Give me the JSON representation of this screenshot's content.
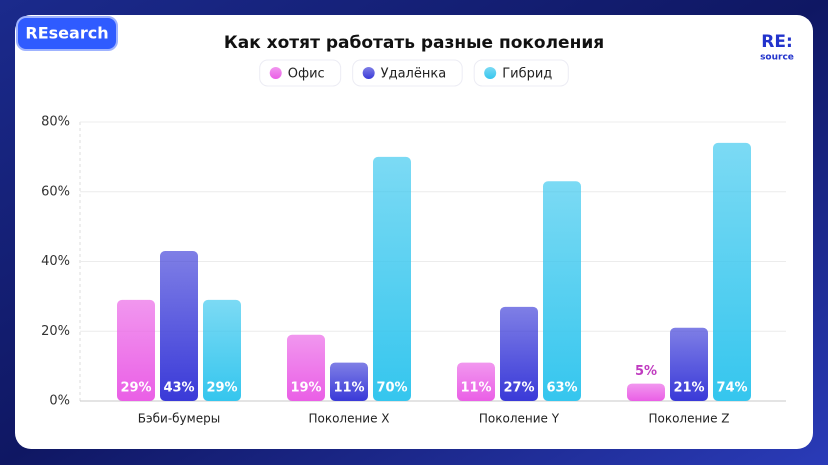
{
  "header": {
    "badge": "REsearch",
    "logo": "RE:",
    "logo_sub": "source"
  },
  "chart_data": {
    "type": "bar",
    "title": "Как хотят работать разные поколения",
    "categories": [
      "Бэби-бумеры",
      "Поколение X",
      "Поколение Y",
      "Поколение Z"
    ],
    "series": [
      {
        "name": "Офис",
        "color": "#ea5fe6",
        "values": [
          29,
          19,
          11,
          5
        ],
        "value_labels": [
          "29%",
          "19%",
          "11%",
          "5%"
        ]
      },
      {
        "name": "Удалёнка",
        "color": "#3a3ad8",
        "values": [
          43,
          11,
          27,
          21
        ],
        "value_labels": [
          "43%",
          "11%",
          "27%",
          "21%"
        ]
      },
      {
        "name": "Гибрид",
        "color": "#35c6ee",
        "values": [
          29,
          70,
          63,
          74
        ],
        "value_labels": [
          "29%",
          "70%",
          "63%",
          "74%"
        ]
      }
    ],
    "ylim": [
      0,
      80
    ],
    "yticks": [
      {
        "value": 0,
        "label": "0%"
      },
      {
        "value": 20,
        "label": "20%"
      },
      {
        "value": 40,
        "label": "40%"
      },
      {
        "value": 60,
        "label": "60%"
      },
      {
        "value": 80,
        "label": "80%"
      }
    ],
    "grid": true,
    "legend": "top"
  }
}
